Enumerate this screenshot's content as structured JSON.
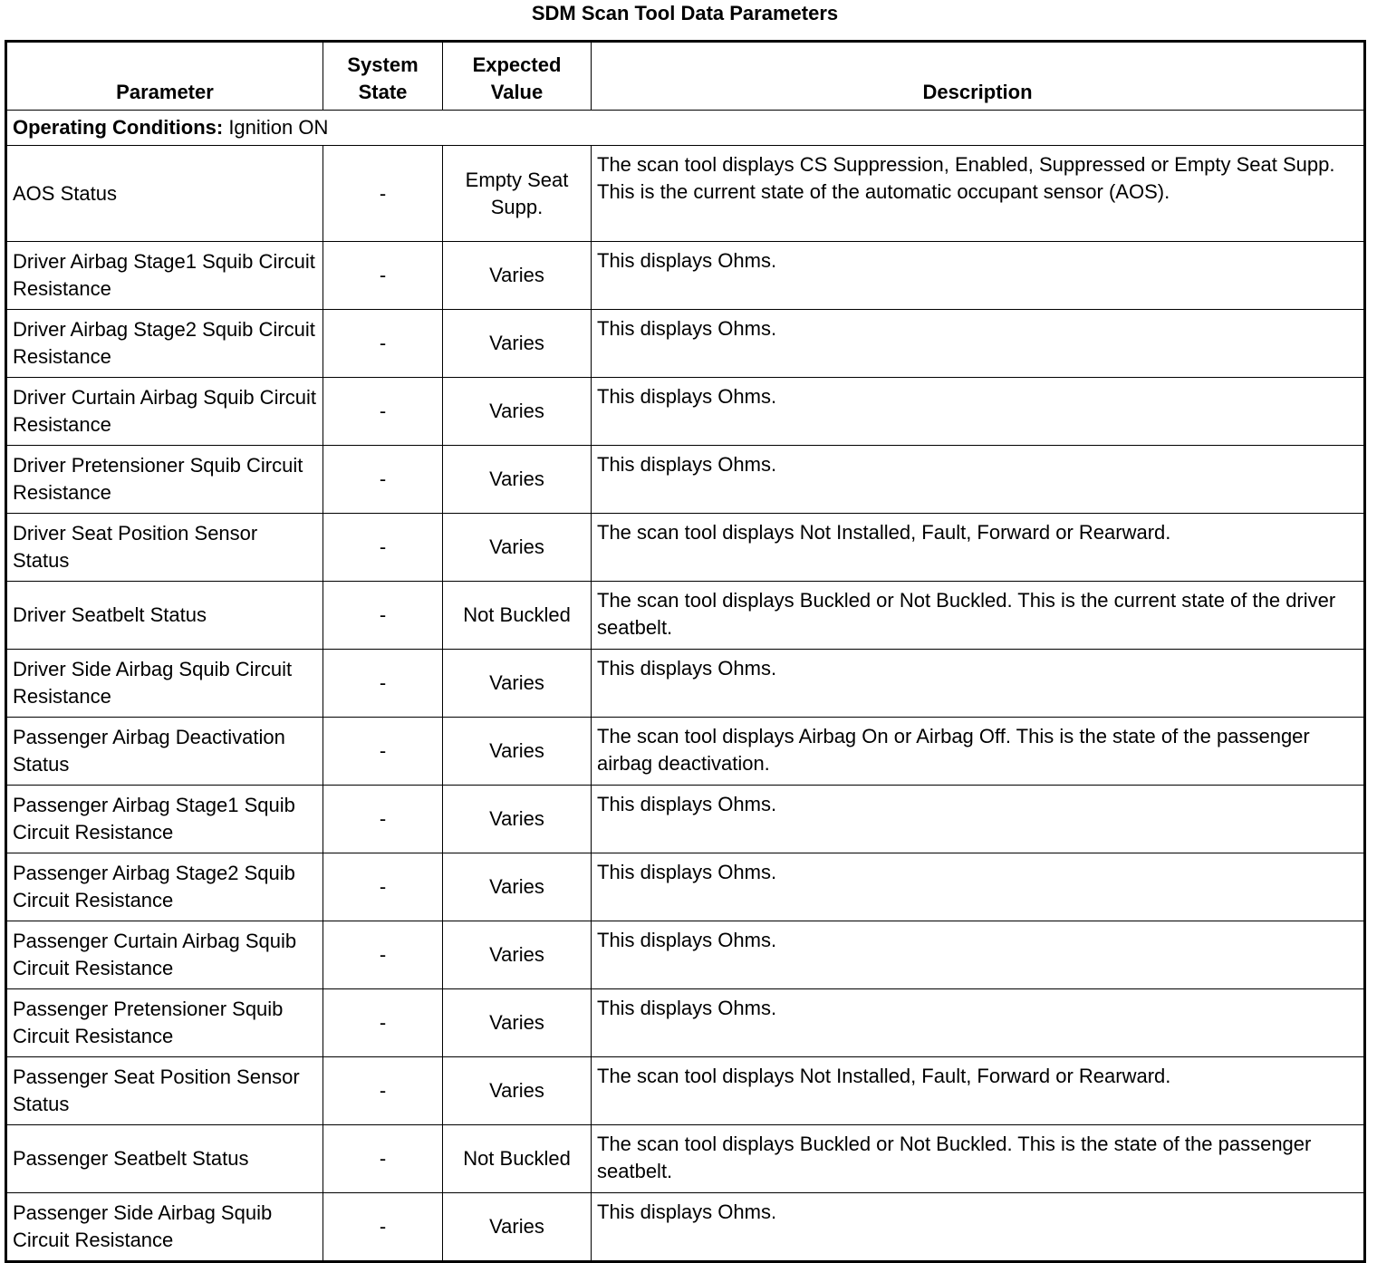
{
  "title": "SDM Scan Tool Data Parameters",
  "headers": {
    "parameter": "Parameter",
    "system_state": "System State",
    "expected_value": "Expected Value",
    "description": "Description"
  },
  "operating_conditions": {
    "label": "Operating Conditions:",
    "value": " Ignition ON"
  },
  "rows": [
    {
      "parameter": "AOS Status",
      "system_state": "-",
      "expected_value": "Empty Seat Supp.",
      "description": "The scan tool displays CS Suppression, Enabled, Suppressed or Empty Seat Supp. This is the current state of the automatic occupant sensor (AOS)."
    },
    {
      "parameter": "Driver Airbag Stage1 Squib Circuit Resistance",
      "system_state": "-",
      "expected_value": "Varies",
      "description": "This displays Ohms."
    },
    {
      "parameter": "Driver Airbag Stage2 Squib Circuit Resistance",
      "system_state": "-",
      "expected_value": "Varies",
      "description": "This displays Ohms."
    },
    {
      "parameter": "Driver Curtain Airbag Squib Circuit Resistance",
      "system_state": "-",
      "expected_value": "Varies",
      "description": "This displays Ohms."
    },
    {
      "parameter": "Driver Pretensioner Squib Circuit Resistance",
      "system_state": "-",
      "expected_value": "Varies",
      "description": "This displays Ohms."
    },
    {
      "parameter": "Driver Seat Position Sensor Status",
      "system_state": "-",
      "expected_value": "Varies",
      "description": "The scan tool displays Not Installed, Fault, Forward or Rearward."
    },
    {
      "parameter": "Driver Seatbelt Status",
      "system_state": "-",
      "expected_value": "Not Buckled",
      "description": "The scan tool displays Buckled or Not Buckled. This is the current state of the driver seatbelt."
    },
    {
      "parameter": "Driver Side Airbag Squib Circuit Resistance",
      "system_state": "-",
      "expected_value": "Varies",
      "description": "This displays Ohms."
    },
    {
      "parameter": "Passenger Airbag Deactivation Status",
      "system_state": "-",
      "expected_value": "Varies",
      "description": "The scan tool displays Airbag On or Airbag Off. This is the state of the passenger airbag deactivation."
    },
    {
      "parameter": "Passenger Airbag Stage1 Squib Circuit Resistance",
      "system_state": "-",
      "expected_value": "Varies",
      "description": "This displays Ohms."
    },
    {
      "parameter": "Passenger Airbag Stage2 Squib Circuit Resistance",
      "system_state": "-",
      "expected_value": "Varies",
      "description": "This displays Ohms."
    },
    {
      "parameter": "Passenger Curtain Airbag Squib Circuit Resistance",
      "system_state": "-",
      "expected_value": "Varies",
      "description": "This displays Ohms."
    },
    {
      "parameter": "Passenger Pretensioner Squib Circuit Resistance",
      "system_state": "-",
      "expected_value": "Varies",
      "description": "This displays Ohms."
    },
    {
      "parameter": "Passenger Seat Position Sensor Status",
      "system_state": "-",
      "expected_value": "Varies",
      "description": "The scan tool displays Not Installed, Fault, Forward or Rearward."
    },
    {
      "parameter": "Passenger Seatbelt Status",
      "system_state": "-",
      "expected_value": "Not Buckled",
      "description": "The scan tool displays Buckled or Not Buckled. This is the state of the passenger seatbelt."
    },
    {
      "parameter": "Passenger Side Airbag Squib Circuit Resistance",
      "system_state": "-",
      "expected_value": "Varies",
      "description": "This displays Ohms."
    }
  ]
}
